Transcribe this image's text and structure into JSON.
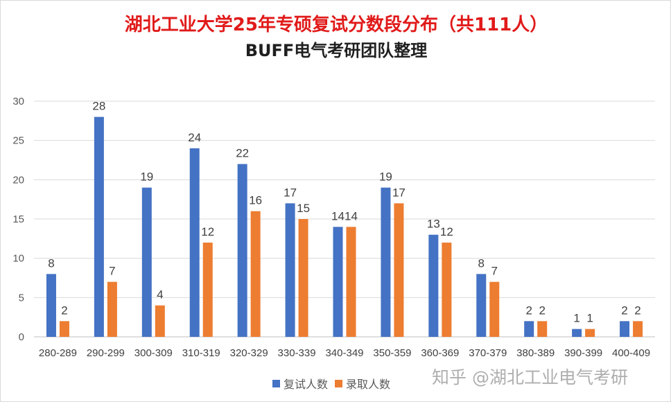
{
  "chart_data": {
    "type": "bar",
    "title": "湖北工业大学25年专硕复试分数段分布（共111人）",
    "subtitle": "BUFF电气考研团队整理",
    "categories": [
      "280-289",
      "290-299",
      "300-309",
      "310-319",
      "320-329",
      "330-339",
      "340-349",
      "350-359",
      "360-369",
      "370-379",
      "380-389",
      "390-399",
      "400-409"
    ],
    "series": [
      {
        "name": "复试人数",
        "color": "#4472c4",
        "values": [
          8,
          28,
          19,
          24,
          22,
          17,
          14,
          19,
          13,
          8,
          2,
          1,
          2
        ]
      },
      {
        "name": "录取人数",
        "color": "#ed7d31",
        "values": [
          2,
          7,
          4,
          12,
          16,
          15,
          14,
          17,
          12,
          7,
          2,
          1,
          2
        ]
      }
    ],
    "ylim": [
      0,
      30
    ],
    "yticks": [
      0,
      5,
      10,
      15,
      20,
      25,
      30
    ],
    "xlabel": "",
    "ylabel": "",
    "grid": true,
    "legend": "bottom",
    "data_labels": true
  },
  "watermark": "知乎 @湖北工业电气考研"
}
